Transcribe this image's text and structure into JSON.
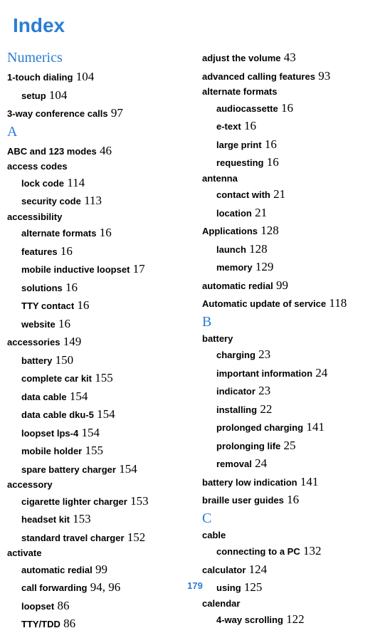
{
  "title": "Index",
  "pageNumber": "179",
  "colors": {
    "blue": "#2b7dd6",
    "black": "#000000",
    "background": "#ffffff"
  },
  "leftColumn": {
    "sections": [
      {
        "header": "Numerics",
        "entries": [
          {
            "text": "1-touch dialing",
            "page": "104",
            "level": 0
          },
          {
            "text": "setup",
            "page": "104",
            "level": 1
          },
          {
            "text": "3-way conference calls",
            "page": "97",
            "level": 0
          }
        ]
      },
      {
        "header": "A",
        "entries": [
          {
            "text": "ABC and 123 modes",
            "page": "46",
            "level": 0
          },
          {
            "text": "access codes",
            "page": "",
            "level": 0
          },
          {
            "text": "lock code",
            "page": "114",
            "level": 1
          },
          {
            "text": "security code",
            "page": "113",
            "level": 1
          },
          {
            "text": "accessibility",
            "page": "",
            "level": 0
          },
          {
            "text": "alternate formats",
            "page": "16",
            "level": 1
          },
          {
            "text": "features",
            "page": "16",
            "level": 1
          },
          {
            "text": "mobile inductive loopset",
            "page": "17",
            "level": 1
          },
          {
            "text": "solutions",
            "page": "16",
            "level": 1
          },
          {
            "text": "TTY contact",
            "page": "16",
            "level": 1
          },
          {
            "text": "website",
            "page": "16",
            "level": 1
          },
          {
            "text": "accessories",
            "page": "149",
            "level": 0
          },
          {
            "text": "battery",
            "page": "150",
            "level": 1
          },
          {
            "text": "complete car kit",
            "page": "155",
            "level": 1
          },
          {
            "text": "data cable",
            "page": "154",
            "level": 1
          },
          {
            "text": "data cable dku-5",
            "page": "154",
            "level": 1
          },
          {
            "text": "loopset lps-4",
            "page": "154",
            "level": 1
          },
          {
            "text": "mobile holder",
            "page": "155",
            "level": 1
          },
          {
            "text": "spare battery charger",
            "page": "154",
            "level": 1
          },
          {
            "text": "accessory",
            "page": "",
            "level": 0
          },
          {
            "text": "cigarette lighter charger",
            "page": "153",
            "level": 1
          },
          {
            "text": "headset kit",
            "page": "153",
            "level": 1
          },
          {
            "text": "standard travel charger",
            "page": "152",
            "level": 1
          },
          {
            "text": "activate",
            "page": "",
            "level": 0
          },
          {
            "text": "automatic redial",
            "page": "99",
            "level": 1
          },
          {
            "text": "call forwarding",
            "page": "94, 96",
            "level": 1
          },
          {
            "text": "loopset",
            "page": "86",
            "level": 1
          },
          {
            "text": "TTY/TDD",
            "page": "86",
            "level": 1
          }
        ]
      }
    ]
  },
  "rightColumn": {
    "sections": [
      {
        "header": "",
        "entries": [
          {
            "text": "adjust the volume",
            "page": "43",
            "level": 0
          },
          {
            "text": "advanced calling features",
            "page": "93",
            "level": 0
          },
          {
            "text": "alternate formats",
            "page": "",
            "level": 0
          },
          {
            "text": "audiocassette",
            "page": "16",
            "level": 1
          },
          {
            "text": "e-text",
            "page": "16",
            "level": 1
          },
          {
            "text": "large print",
            "page": "16",
            "level": 1
          },
          {
            "text": "requesting",
            "page": "16",
            "level": 1
          },
          {
            "text": "antenna",
            "page": "",
            "level": 0
          },
          {
            "text": "contact with",
            "page": "21",
            "level": 1
          },
          {
            "text": "location",
            "page": "21",
            "level": 1
          },
          {
            "text": "Applications",
            "page": "128",
            "level": 0
          },
          {
            "text": "launch",
            "page": "128",
            "level": 1
          },
          {
            "text": "memory",
            "page": "129",
            "level": 1
          },
          {
            "text": "automatic redial",
            "page": "99",
            "level": 0
          },
          {
            "text": "Automatic update of service",
            "page": "118",
            "level": 0
          }
        ]
      },
      {
        "header": "B",
        "entries": [
          {
            "text": "battery",
            "page": "",
            "level": 0
          },
          {
            "text": "charging",
            "page": "23",
            "level": 1
          },
          {
            "text": "important information",
            "page": "24",
            "level": 1
          },
          {
            "text": "indicator",
            "page": "23",
            "level": 1
          },
          {
            "text": "installing",
            "page": "22",
            "level": 1
          },
          {
            "text": "prolonged charging",
            "page": "141",
            "level": 1
          },
          {
            "text": "prolonging life",
            "page": "25",
            "level": 1
          },
          {
            "text": "removal",
            "page": "24",
            "level": 1
          },
          {
            "text": "battery low indication",
            "page": "141",
            "level": 0
          },
          {
            "text": "braille user guides",
            "page": "16",
            "level": 0
          }
        ]
      },
      {
        "header": "C",
        "entries": [
          {
            "text": "cable",
            "page": "",
            "level": 0
          },
          {
            "text": "connecting to a PC",
            "page": "132",
            "level": 1
          },
          {
            "text": "calculator",
            "page": "124",
            "level": 0
          },
          {
            "text": "using",
            "page": "125",
            "level": 1
          },
          {
            "text": "calendar",
            "page": "",
            "level": 0
          },
          {
            "text": "4-way scrolling",
            "page": "122",
            "level": 1
          }
        ]
      }
    ]
  }
}
